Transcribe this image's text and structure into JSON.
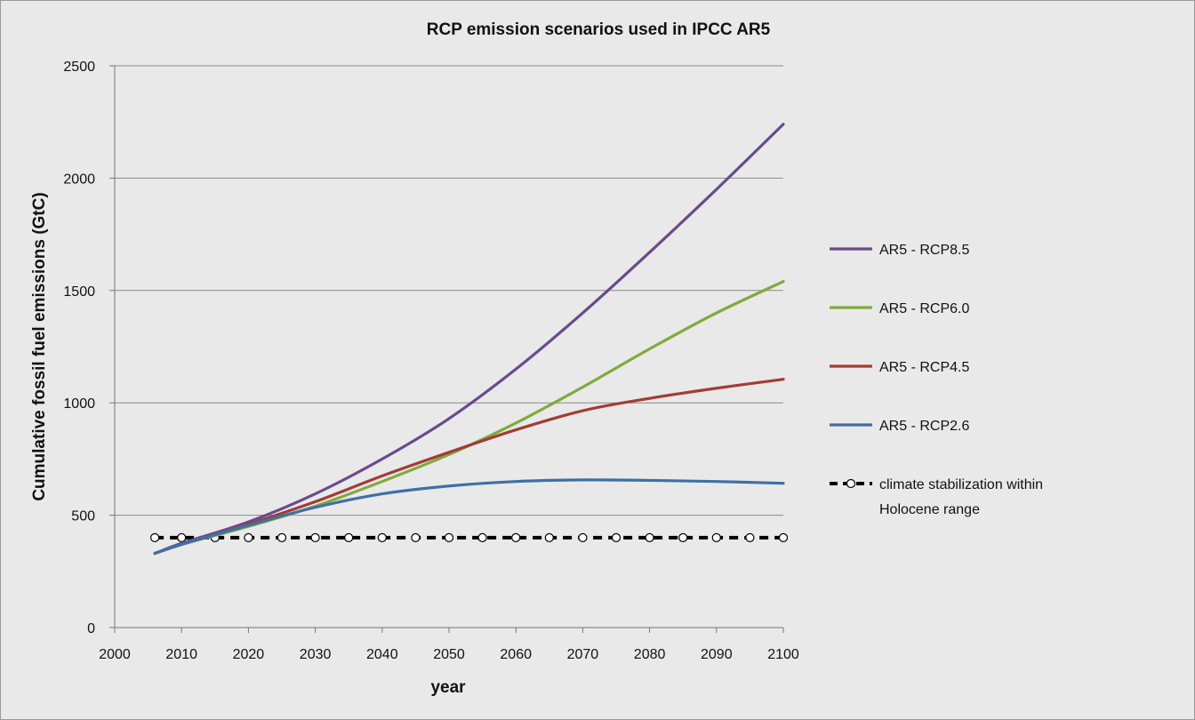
{
  "chart_data": {
    "type": "line",
    "title": "RCP emission scenarios used in IPCC AR5",
    "xlabel": "year",
    "ylabel": "Cumulative fossil fuel emissions (GtC)",
    "xlim": [
      2000,
      2100
    ],
    "ylim": [
      0,
      2500
    ],
    "xticks": [
      2000,
      2010,
      2020,
      2030,
      2040,
      2050,
      2060,
      2070,
      2080,
      2090,
      2100
    ],
    "yticks": [
      0,
      500,
      1000,
      1500,
      2000,
      2500
    ],
    "grid": "horizontal",
    "legend_position": "right",
    "series": [
      {
        "name": "AR5 - RCP8.5",
        "color": "#6a4a8c",
        "style": "solid",
        "x": [
          2006,
          2010,
          2020,
          2030,
          2040,
          2050,
          2060,
          2070,
          2080,
          2090,
          2100
        ],
        "y": [
          330,
          375,
          470,
          595,
          750,
          930,
          1150,
          1400,
          1670,
          1950,
          2240
        ]
      },
      {
        "name": "AR5 - RCP6.0",
        "color": "#80aa3c",
        "style": "solid",
        "x": [
          2006,
          2010,
          2020,
          2030,
          2040,
          2050,
          2060,
          2070,
          2080,
          2090,
          2100
        ],
        "y": [
          330,
          370,
          450,
          540,
          650,
          770,
          910,
          1070,
          1240,
          1400,
          1540
        ]
      },
      {
        "name": "AR5 - RCP4.5",
        "color": "#a33c36",
        "style": "solid",
        "x": [
          2006,
          2010,
          2020,
          2030,
          2040,
          2050,
          2060,
          2070,
          2080,
          2090,
          2100
        ],
        "y": [
          330,
          370,
          460,
          560,
          675,
          780,
          880,
          965,
          1020,
          1065,
          1105
        ]
      },
      {
        "name": "AR5 - RCP2.6",
        "color": "#3f6fa8",
        "style": "solid",
        "x": [
          2006,
          2010,
          2020,
          2030,
          2040,
          2050,
          2060,
          2070,
          2080,
          2090,
          2100
        ],
        "y": [
          330,
          370,
          455,
          535,
          595,
          630,
          650,
          657,
          655,
          650,
          642
        ]
      },
      {
        "name": "climate stabilization within Holocene range",
        "color": "#000000",
        "style": "dashed-markers",
        "x": [
          2006,
          2010,
          2015,
          2020,
          2025,
          2030,
          2035,
          2040,
          2045,
          2050,
          2055,
          2060,
          2065,
          2070,
          2075,
          2080,
          2085,
          2090,
          2095,
          2100
        ],
        "y": [
          400,
          400,
          400,
          400,
          400,
          400,
          400,
          400,
          400,
          400,
          400,
          400,
          400,
          400,
          400,
          400,
          400,
          400,
          400,
          400
        ]
      }
    ]
  }
}
